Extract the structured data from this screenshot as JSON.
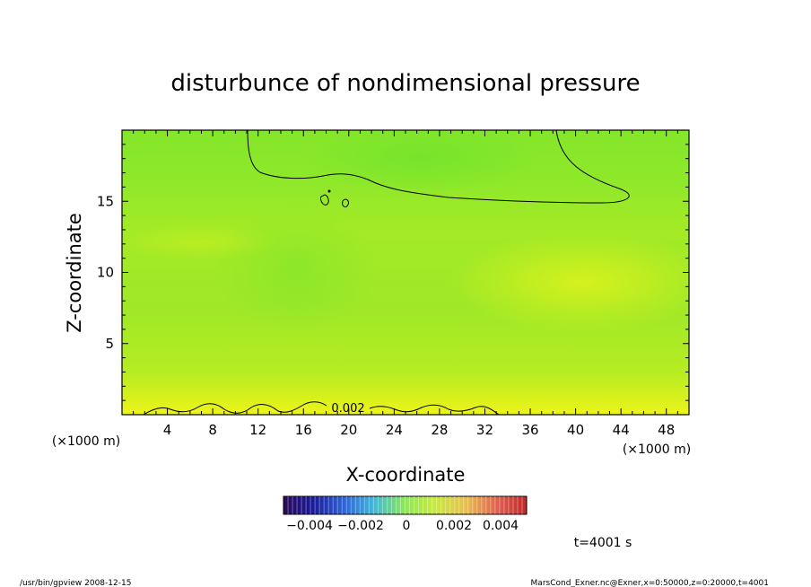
{
  "chart_data": {
    "type": "heatmap",
    "title": "disturbunce of nondimensional pressure",
    "xlabel": "X-coordinate",
    "ylabel": "Z-coordinate",
    "x_unit_left": "(×1000 m)",
    "x_unit_right": "(×1000 m)",
    "xlim": [
      0,
      50
    ],
    "ylim": [
      0,
      20
    ],
    "x_ticks": [
      4,
      8,
      12,
      16,
      20,
      24,
      28,
      32,
      36,
      40,
      44,
      48
    ],
    "y_ticks": [
      5,
      10,
      15
    ],
    "contour_levels": [
      {
        "value": 0.002,
        "label": "0.002"
      },
      {
        "value": 0,
        "label": ""
      }
    ],
    "colorbar": {
      "range": [
        -0.005,
        0.005
      ],
      "tick_labels": [
        "−0.004",
        "−0.002",
        "0",
        "0.002",
        "0.004"
      ]
    },
    "time_label": "t=4001 s"
  },
  "footer": {
    "left": "/usr/bin/gpview   2008-12-15",
    "right": "MarsCond_Exner.nc@Exner,x=0:50000,z=0:20000,t=4001"
  },
  "colors": {
    "field_top": "#88e82a",
    "field_mid": "#a3e624",
    "field_bottom": "#e6f41a",
    "contour": "#000000"
  }
}
